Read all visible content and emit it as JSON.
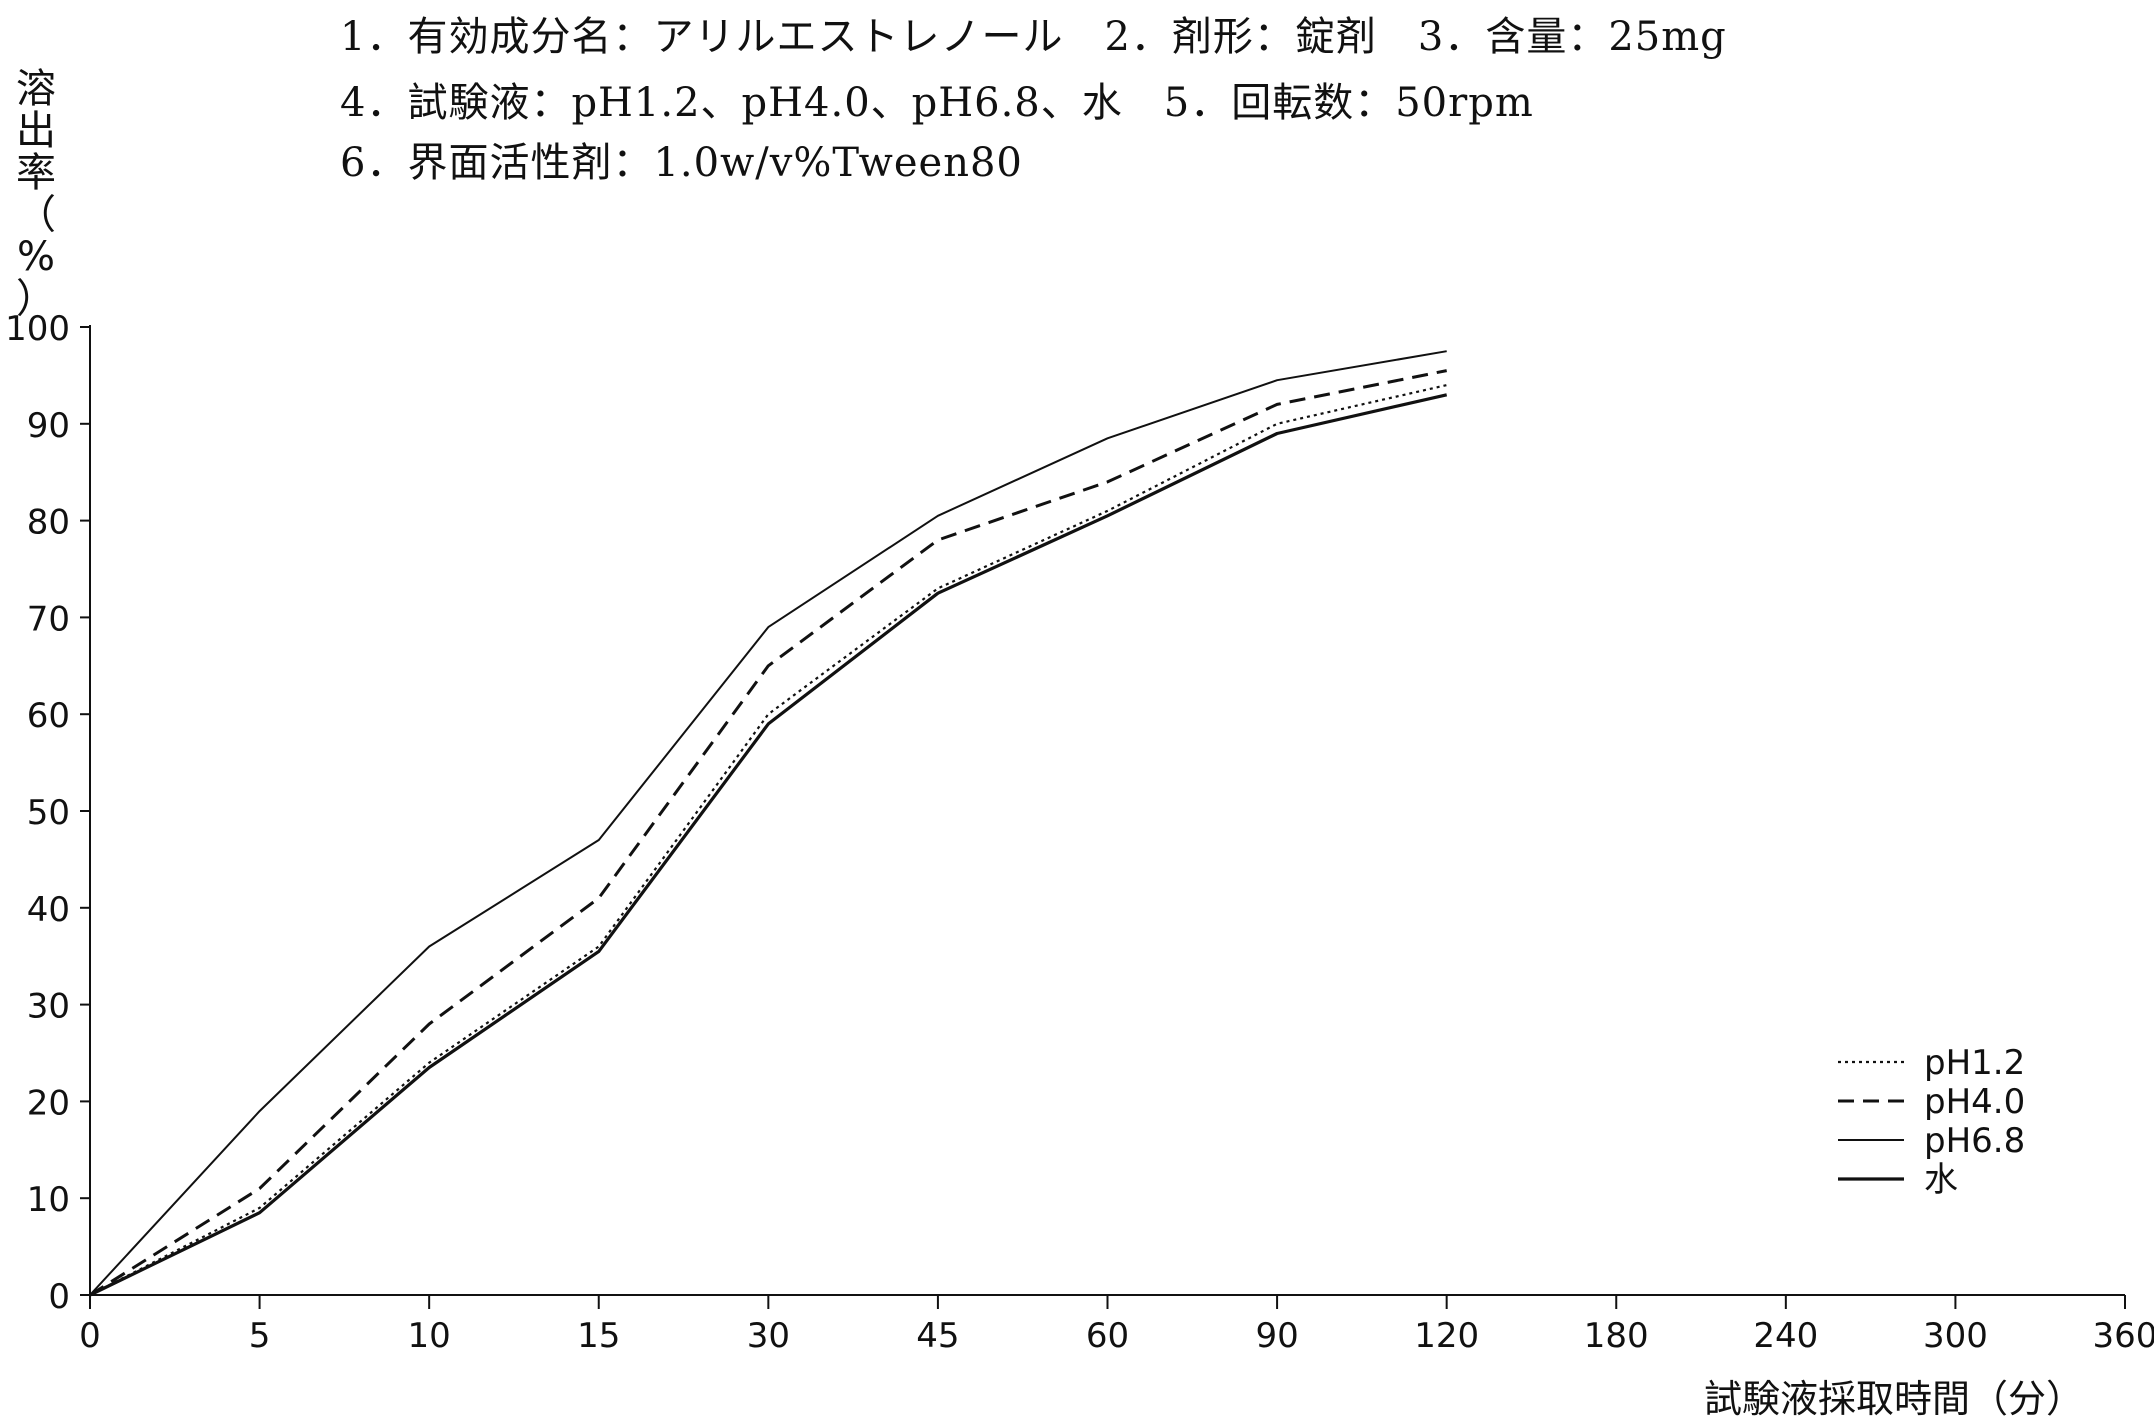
{
  "header": {
    "line1": "1．有効成分名：アリルエストレノール　2．剤形：錠剤　3．含量：25mg",
    "line2": "4．試験液：pH1.2、pH4.0、pH6.8、水　5．回転数：50rpm",
    "line3": "6．界面活性剤：1.0w/v%Tween80"
  },
  "chart_data": {
    "type": "line",
    "ylabel_chars": [
      "溶",
      "出",
      "率",
      "（",
      "%",
      "）"
    ],
    "ylabel": "溶出率（%）",
    "xlabel": "試験液採取時間（分）",
    "x_ticks": [
      "0",
      "5",
      "10",
      "15",
      "30",
      "45",
      "60",
      "90",
      "120",
      "180",
      "240",
      "300",
      "360"
    ],
    "y_ticks": [
      "0",
      "10",
      "20",
      "30",
      "40",
      "50",
      "60",
      "70",
      "80",
      "90",
      "100"
    ],
    "ylim": [
      0,
      100
    ],
    "grid": false,
    "legend_position": "bottom-right",
    "x": [
      0,
      5,
      10,
      15,
      30,
      45,
      60,
      90,
      120
    ],
    "series": [
      {
        "name": "pH1.2",
        "style": "dotted",
        "values": [
          0,
          9,
          24,
          36,
          60,
          73,
          81,
          90,
          94
        ]
      },
      {
        "name": "pH4.0",
        "style": "dashed",
        "values": [
          0,
          11,
          28,
          41,
          65,
          78,
          84,
          92,
          95.5
        ]
      },
      {
        "name": "pH6.8",
        "style": "solid-thin",
        "values": [
          0,
          19,
          36,
          47,
          69,
          80.5,
          88.5,
          94.5,
          97.5
        ]
      },
      {
        "name": "水",
        "style": "solid",
        "values": [
          0,
          8.5,
          23.5,
          35.5,
          59,
          72.5,
          80.5,
          89,
          93
        ]
      }
    ],
    "line_color": "#111111"
  }
}
